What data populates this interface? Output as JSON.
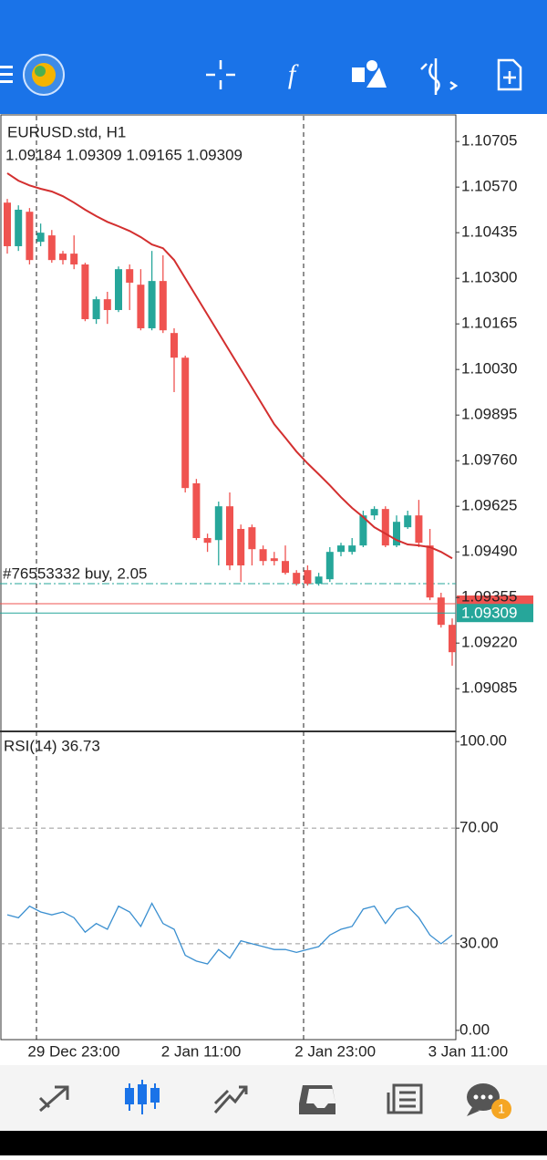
{
  "chart_data": [
    {
      "type": "candlestick",
      "title": "EURUSD.std, H1",
      "subtitle": "1.09184 1.09309 1.09165 1.09309",
      "categories": [
        null,
        null,
        "29 Dec 23:00",
        null,
        null,
        null,
        null,
        null,
        null,
        null,
        null,
        null,
        null,
        null,
        "2 Jan 11:00",
        null,
        null,
        null,
        null,
        null,
        null,
        null,
        null,
        null,
        null,
        null,
        "2 Jan 23:00",
        null,
        null,
        null,
        null,
        null,
        null,
        null,
        null,
        null,
        null,
        null,
        "3 Jan 11:00",
        null,
        null
      ],
      "open": [
        1.10524,
        1.10395,
        1.10497,
        1.10408,
        1.10427,
        1.10373,
        1.10373,
        1.10341,
        1.10179,
        1.10238,
        1.10206,
        1.10327,
        1.10281,
        1.10152,
        1.10292,
        1.10138,
        1.10065,
        1.09693,
        1.09531,
        1.09525,
        1.09625,
        1.09558,
        1.09563,
        1.09498,
        1.09471,
        1.09463,
        1.09428,
        1.09436,
        1.09396,
        1.09409,
        1.0949,
        1.0949,
        1.09509,
        1.09598,
        1.09617,
        1.09509,
        1.09563,
        1.09598,
        1.09509,
        1.09355,
        1.09274
      ],
      "high": [
        1.10535,
        1.10516,
        1.10508,
        1.10462,
        1.10443,
        1.10381,
        1.10427,
        1.10346,
        1.10246,
        1.1026,
        1.10335,
        1.10341,
        1.10327,
        1.10381,
        1.10368,
        1.10152,
        1.10071,
        1.09706,
        1.09544,
        1.09639,
        1.09666,
        1.09571,
        1.09571,
        1.09509,
        1.0949,
        1.09509,
        1.09436,
        1.0945,
        1.09428,
        1.09504,
        1.09517,
        1.09531,
        1.09612,
        1.09625,
        1.09625,
        1.09598,
        1.09612,
        1.09644,
        1.09558,
        1.09369,
        1.09293
      ],
      "low": [
        1.10373,
        1.10381,
        1.10341,
        1.10395,
        1.10346,
        1.10341,
        1.10327,
        1.10173,
        1.10165,
        1.10165,
        1.102,
        1.10206,
        1.10146,
        1.10146,
        1.10138,
        1.09963,
        1.09666,
        1.09525,
        1.0949,
        1.0945,
        1.09436,
        1.09401,
        1.0945,
        1.0945,
        1.0945,
        1.09423,
        1.0939,
        1.0939,
        1.0939,
        1.09401,
        1.09477,
        1.09482,
        1.09504,
        1.09585,
        1.09504,
        1.09504,
        1.09558,
        1.09504,
        1.09347,
        1.09266,
        1.09153
      ],
      "close": [
        1.10395,
        1.10503,
        1.10354,
        1.10435,
        1.10354,
        1.10354,
        1.10341,
        1.10179,
        1.10238,
        1.10206,
        1.10327,
        1.10287,
        1.10152,
        1.10292,
        1.10146,
        1.10065,
        1.09679,
        1.09531,
        1.09517,
        1.09625,
        1.0945,
        1.0945,
        1.09498,
        1.09463,
        1.09463,
        1.09428,
        1.09396,
        1.09396,
        1.09417,
        1.0949,
        1.09509,
        1.09509,
        1.09598,
        1.09617,
        1.09509,
        1.09579,
        1.09598,
        1.09517,
        1.09355,
        1.09274,
        1.09193
      ],
      "up_color": "#26a69a",
      "down_color": "#ef5350",
      "ma": {
        "color": "#d32f2f",
        "values": [
          1.10611,
          1.10589,
          1.10575,
          1.10565,
          1.10557,
          1.10543,
          1.10524,
          1.10503,
          1.10484,
          1.10467,
          1.10454,
          1.1044,
          1.10422,
          1.104,
          1.10389,
          1.10354,
          1.103,
          1.10246,
          1.10192,
          1.10138,
          1.10084,
          1.1003,
          1.09976,
          1.09922,
          1.09868,
          1.09828,
          1.09787,
          1.09752,
          1.0972,
          1.09687,
          1.09652,
          1.0962,
          1.09593,
          1.09563,
          1.09544,
          1.09525,
          1.09512,
          1.09509,
          1.09504,
          1.0949,
          1.09471
        ]
      },
      "last_price": 1.09309,
      "last_price_color": "#26a69a",
      "ylim": [
        1.08964,
        1.10781
      ],
      "yticks": [
        1.10705,
        {
          "value": 1.1057,
          "label": "1.10570"
        },
        1.10435,
        {
          "value": 1.103,
          "label": "1.10300"
        },
        1.10165,
        {
          "value": 1.1003,
          "label": "1.10030"
        },
        1.09895,
        {
          "value": 1.0976,
          "label": "1.09760"
        },
        1.09625,
        {
          "value": 1.0949,
          "label": "1.09490"
        },
        1.09355,
        {
          "value": 1.0922,
          "label": "1.09220"
        },
        1.09085
      ]
    },
    {
      "type": "line",
      "title": "RSI(14) 36.73",
      "color": "#3a8fd0",
      "values": [
        40,
        39,
        43,
        41,
        40,
        41,
        39,
        34,
        37,
        35,
        43,
        41,
        36,
        44,
        37,
        35,
        26,
        24,
        23,
        28,
        25,
        31,
        30,
        29,
        28,
        28,
        27,
        28,
        29,
        33,
        35,
        36,
        42,
        43,
        37,
        42,
        43,
        39,
        33,
        30,
        33
      ],
      "ylim": [
        -3.2,
        103.2
      ],
      "yticks": [
        {
          "value": 100,
          "label": "100.00"
        },
        {
          "value": 70,
          "label": "70.00"
        },
        {
          "value": 30,
          "label": "30.00"
        },
        {
          "value": 0,
          "label": "0.00"
        }
      ]
    }
  ],
  "order_line": {
    "label": "#76553332 buy, 2.05"
  },
  "bottom_nav": {
    "badge": 1
  }
}
